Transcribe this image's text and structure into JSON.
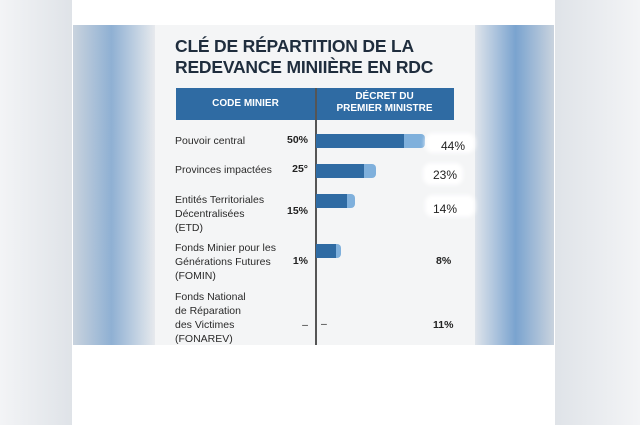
{
  "title": [
    "CLÉ DE RÉPARTITION DE LA",
    "REDEVANCE MINIIÈRE EN RDC"
  ],
  "header": {
    "col1": "CODE MINIER",
    "col2_line1": "DÉCRET DU",
    "col2_line2": "PREMIER MINISTRE"
  },
  "colors": {
    "header": "#2f6ba3",
    "bar_dark": "#2f6ba3",
    "bar_light": "#7fb0dc"
  },
  "rows": [
    {
      "label": [
        "Pouvoir central"
      ],
      "code_minier": "50%",
      "decret": "44%",
      "bar_pct": 44
    },
    {
      "label": [
        "Provinces impactées"
      ],
      "code_minier": "25°",
      "decret": "23%",
      "bar_pct": 23
    },
    {
      "label": [
        "Entités Territoriales",
        "Décentralisées",
        "(ETD)"
      ],
      "code_minier": "15%",
      "decret": "14%",
      "bar_pct": 14
    },
    {
      "label": [
        "Fonds Minier pour les",
        "Générations Futures",
        "(FOMIN)"
      ],
      "code_minier": "1%",
      "decret": "8%",
      "bar_pct": 8
    },
    {
      "label": [
        "Fonds National",
        "de Réparation",
        "des Victimes",
        "(FONAREV)"
      ],
      "code_minier": "–",
      "decret_dash": "–",
      "decret": "11%"
    }
  ]
}
